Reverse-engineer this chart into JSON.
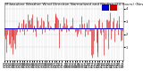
{
  "title": "Milwaukee Weather Wind Direction Normalized and Median (24 Hours) (New)",
  "background_color": "#ffffff",
  "plot_bg_color": "#ffffff",
  "grid_color": "#bbbbbb",
  "line_color_normalized": "#cc0000",
  "line_color_median": "#0000cc",
  "median_value": 2.5,
  "ylim": [
    0.0,
    4.5
  ],
  "xlim": [
    0,
    143
  ],
  "num_points": 144,
  "legend_normalized_color": "#cc0000",
  "legend_median_color": "#0000cc",
  "title_fontsize": 3.0,
  "tick_fontsize": 2.5,
  "yticks": [
    1,
    2,
    3,
    4
  ],
  "ytick_labels": [
    "1",
    "2",
    "3",
    "4"
  ]
}
